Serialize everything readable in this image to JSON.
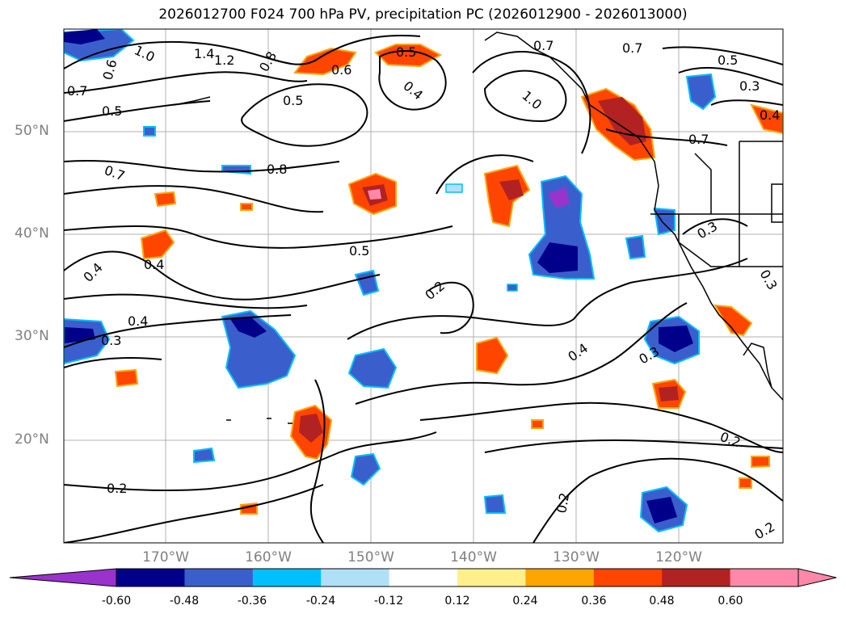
{
  "title": "2026012700 F024 700 hPa PV, precipitation PC (2026012900 - 2026013000)",
  "axes": {
    "lat_labels": [
      "50°N",
      "40°N",
      "30°N",
      "20°N"
    ],
    "lon_labels": [
      "170°W",
      "160°W",
      "150°W",
      "140°W",
      "130°W",
      "120°W"
    ]
  },
  "contour_labels": [
    "1.0",
    "1.4",
    "1.2",
    "0.6",
    "0.7",
    "0.5",
    "0.8",
    "0.5",
    "0.6",
    "0.4",
    "0.5",
    "0.7",
    "1.0",
    "0.7",
    "0.5",
    "0.3",
    "0.4",
    "0.7",
    "0.7",
    "0.8",
    "0.5",
    "0.4",
    "0.4",
    "0.4",
    "0.3",
    "0.2",
    "0.4",
    "0.3",
    "0.3",
    "0.2",
    "0.2",
    "0.2",
    "0.2",
    "0.3"
  ],
  "colorbar": {
    "colors": [
      "#9933cc",
      "#00008b",
      "#3a5fcd",
      "#00bfff",
      "#b0e0f8",
      "#ffffff",
      "#fff08c",
      "#ffa500",
      "#ff4500",
      "#b22222",
      "#ff88aa",
      "#ff88aa"
    ],
    "tick_labels": [
      "-0.60",
      "-0.48",
      "-0.36",
      "-0.24",
      "-0.12",
      "0.12",
      "0.24",
      "0.36",
      "0.48",
      "0.60"
    ]
  }
}
